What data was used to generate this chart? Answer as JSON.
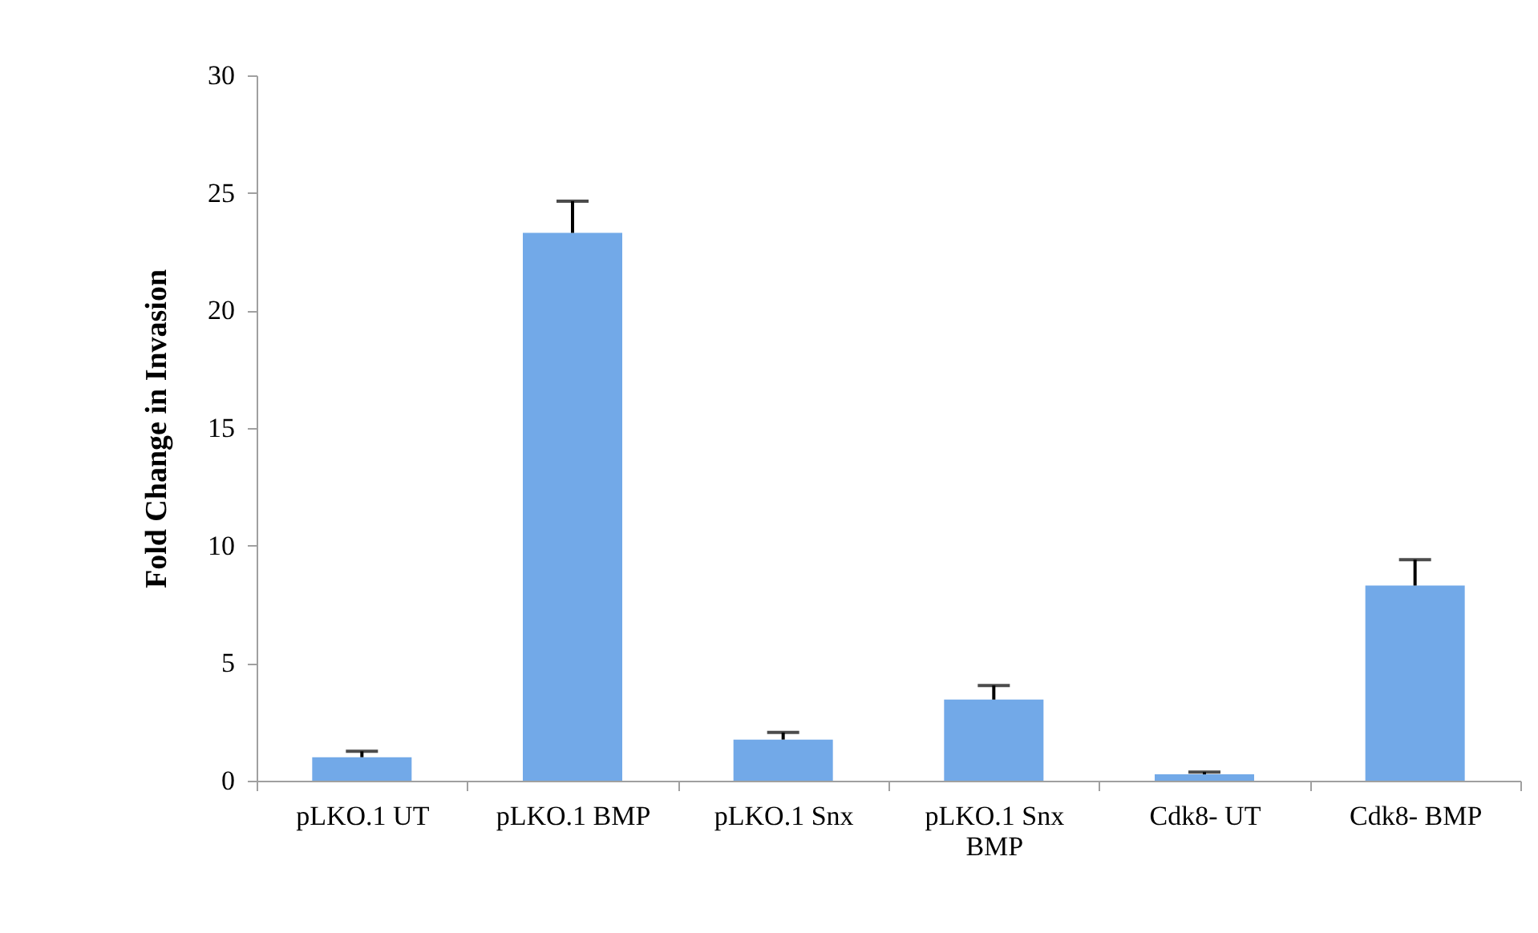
{
  "chart_data": {
    "type": "bar",
    "ylabel": "Fold Change in Invasion",
    "categories": [
      "pLKO.1 UT",
      "pLKO.1 BMP",
      "pLKO.1 Snx",
      "pLKO.1 Snx BMP",
      "Cdk8- UT",
      "Cdk8- BMP"
    ],
    "values": [
      1.0,
      23.3,
      1.75,
      3.45,
      0.27,
      8.3
    ],
    "errors": [
      0.25,
      1.35,
      0.3,
      0.6,
      0.1,
      1.1
    ],
    "color": "#72a9e8",
    "ylim": [
      0,
      30
    ],
    "yticks": [
      0,
      5,
      10,
      15,
      20,
      25,
      30
    ],
    "grid": false
  }
}
